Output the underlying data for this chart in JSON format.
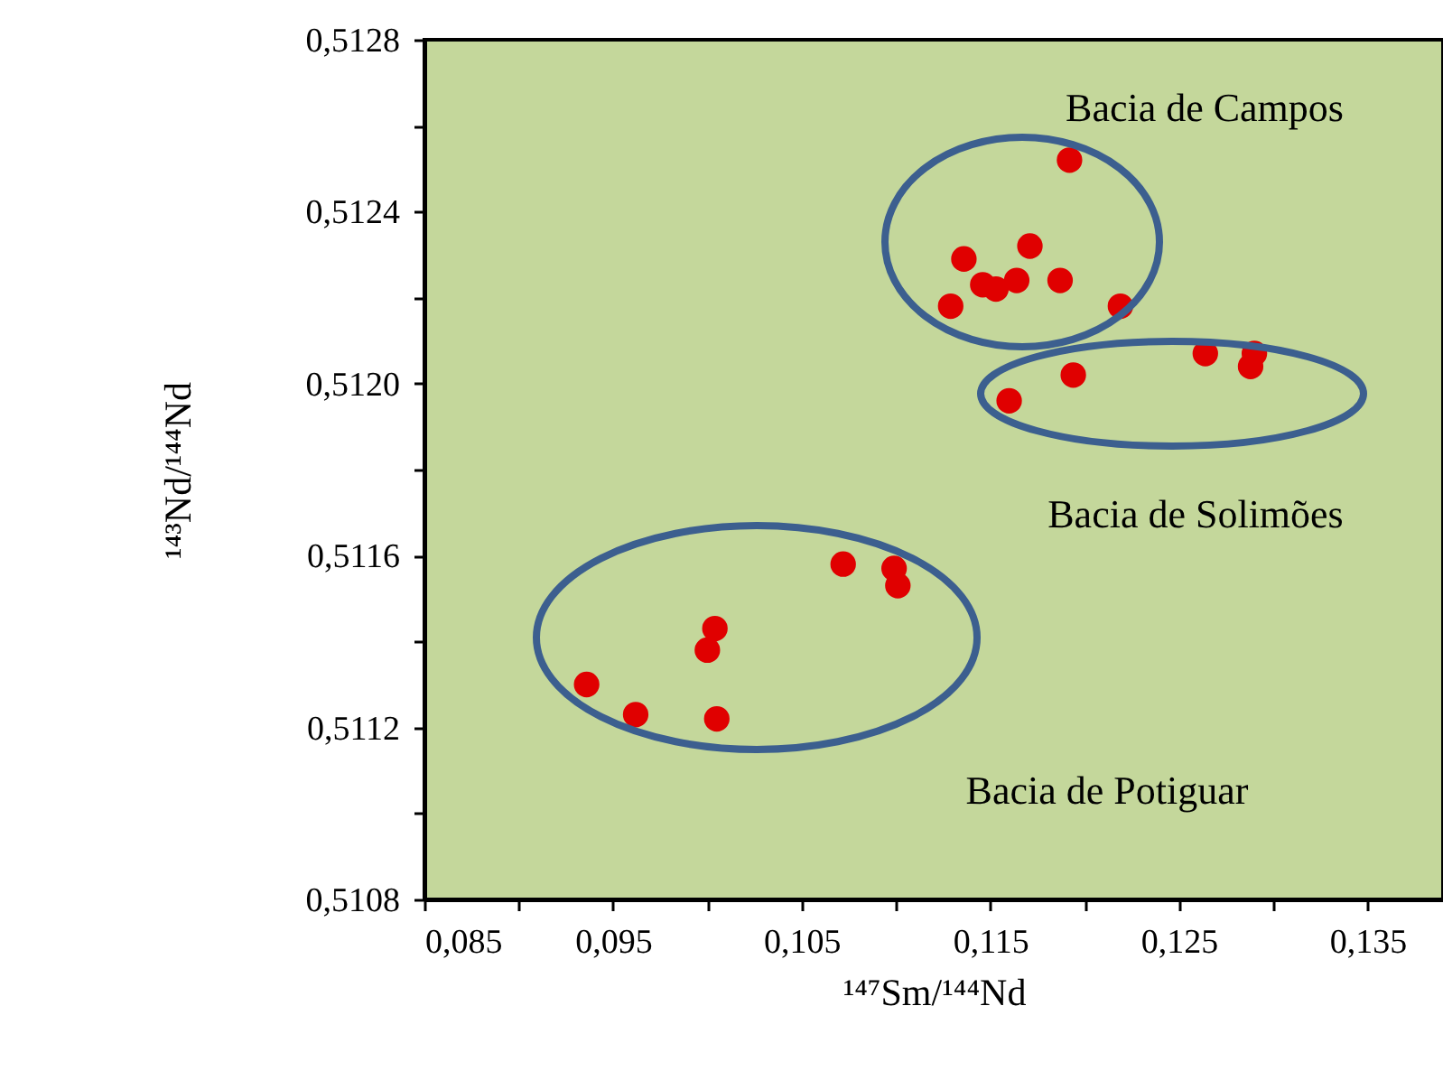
{
  "chart_data": {
    "type": "scatter",
    "xlabel": "¹⁴⁷Sm/¹⁴⁴Nd",
    "ylabel": "¹⁴³Nd/¹⁴⁴Nd",
    "x": [
      0.1192,
      0.1171,
      0.1136,
      0.1146,
      0.1153,
      0.1164,
      0.1187,
      0.1129,
      0.1219,
      0.1264,
      0.129,
      0.1288,
      0.1194,
      0.116,
      0.1072,
      0.1099,
      0.1101,
      0.1004,
      0.1,
      0.0936,
      0.0962,
      0.1005
    ],
    "values": [
      0.51252,
      0.51232,
      0.51229,
      0.51223,
      0.51222,
      0.51224,
      0.51224,
      0.51218,
      0.51218,
      0.51207,
      0.51207,
      0.51204,
      0.51202,
      0.51196,
      0.51158,
      0.51157,
      0.51153,
      0.51143,
      0.51138,
      0.5113,
      0.51123,
      0.51122
    ],
    "color": "#e00000",
    "marker": "circle",
    "grid": false,
    "xlim": [
      0.085,
      0.139
    ],
    "ylim": [
      0.5108,
      0.5128
    ],
    "xticks": [
      {
        "value": 0.085,
        "label": "0,085"
      },
      {
        "value": 0.09,
        "label": null
      },
      {
        "value": 0.095,
        "label": "0,095"
      },
      {
        "value": 0.1,
        "label": null
      },
      {
        "value": 0.105,
        "label": "0,105"
      },
      {
        "value": 0.11,
        "label": null
      },
      {
        "value": 0.115,
        "label": "0,115"
      },
      {
        "value": 0.12,
        "label": null
      },
      {
        "value": 0.125,
        "label": "0,125"
      },
      {
        "value": 0.13,
        "label": null
      },
      {
        "value": 0.135,
        "label": "0,135"
      }
    ],
    "yticks": [
      {
        "value": 0.5108,
        "label": "0,5108"
      },
      {
        "value": 0.511,
        "label": null
      },
      {
        "value": 0.5112,
        "label": "0,5112"
      },
      {
        "value": 0.5114,
        "label": null
      },
      {
        "value": 0.5116,
        "label": "0,5116"
      },
      {
        "value": 0.5118,
        "label": null
      },
      {
        "value": 0.512,
        "label": "0,5120"
      },
      {
        "value": 0.5122,
        "label": null
      },
      {
        "value": 0.5124,
        "label": "0,5124"
      },
      {
        "value": 0.5126,
        "label": null
      },
      {
        "value": 0.5128,
        "label": "0,5128"
      }
    ],
    "annotations": [
      "Bacia de Campos",
      "Bacia de Solimões",
      "Bacia de Potiguar"
    ]
  }
}
